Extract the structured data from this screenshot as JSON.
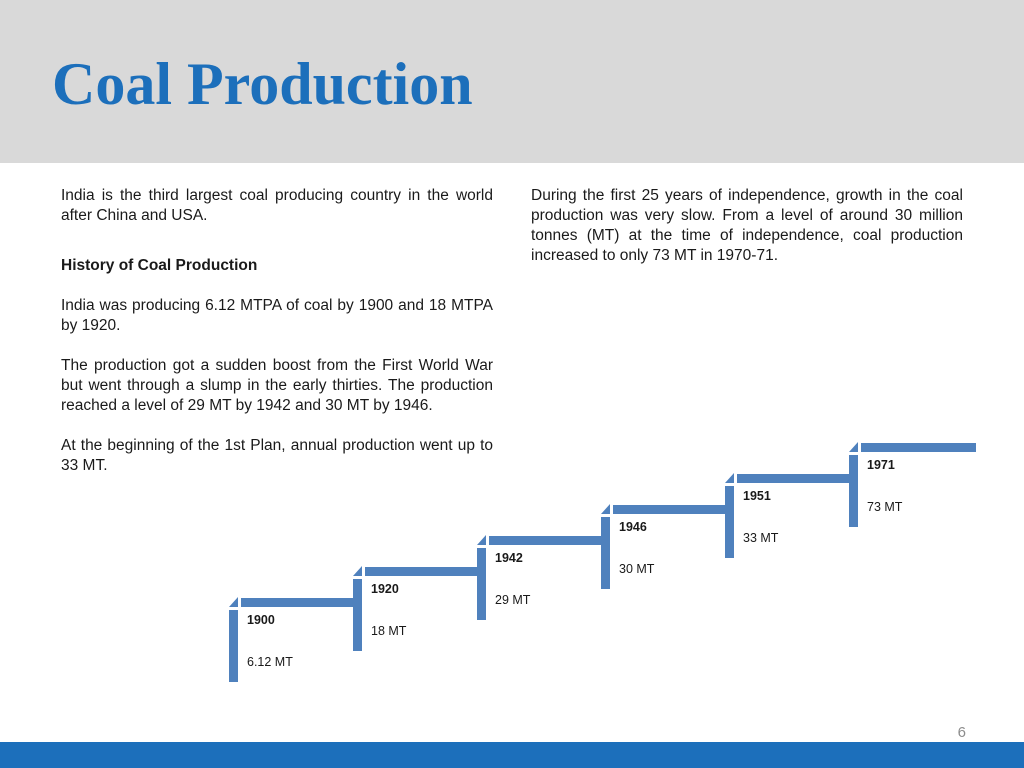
{
  "title": "Coal Production",
  "left_column": {
    "intro": "India is the third largest coal producing country in the world after China and USA.",
    "heading": "History of Coal Production",
    "paragraphs": [
      "India was producing 6.12 MTPA of coal by 1900 and 18 MTPA by 1920.",
      "The production got a sudden boost from the First World War but went through a slump in the early thirties. The production reached a level of 29 MT by 1942 and 30 MT by 1946.",
      "At the beginning of the 1st Plan, annual production went up to 33 MT."
    ]
  },
  "right_column": {
    "text": "During the first 25 years of independence, growth in the coal production was very slow. From a level of around 30 million tonnes (MT) at the time of independence, coal production increased to only 73 MT in 1970-71."
  },
  "timeline": {
    "color": "#4f81bd",
    "steps": [
      {
        "year": "1900",
        "value": "6.12 MT"
      },
      {
        "year": "1920",
        "value": "18 MT"
      },
      {
        "year": "1942",
        "value": "29 MT"
      },
      {
        "year": "1946",
        "value": "30 MT"
      },
      {
        "year": "1951",
        "value": "33 MT"
      },
      {
        "year": "1971",
        "value": "73 MT"
      }
    ]
  },
  "page_number": "6",
  "colors": {
    "title": "#1c6fbb",
    "title_band": "#d9d9d9",
    "bottom_bar": "#1c6fbb"
  }
}
